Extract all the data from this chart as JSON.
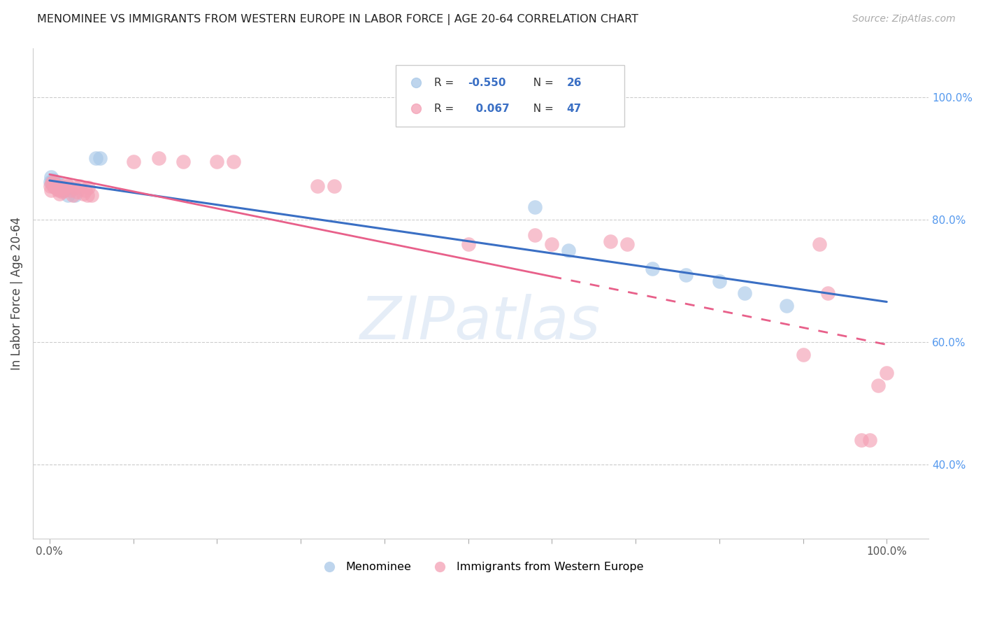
{
  "title": "MENOMINEE VS IMMIGRANTS FROM WESTERN EUROPE IN LABOR FORCE | AGE 20-64 CORRELATION CHART",
  "source": "Source: ZipAtlas.com",
  "ylabel": "In Labor Force | Age 20-64",
  "legend_label1": "Menominee",
  "legend_label2": "Immigrants from Western Europe",
  "R1": -0.55,
  "N1": 26,
  "R2": 0.067,
  "N2": 47,
  "color_blue": "#a8c8e8",
  "color_pink": "#f4a0b5",
  "line_color_blue": "#3a6fc4",
  "line_color_pink": "#e8608a",
  "menominee_x": [
    0.001,
    0.002,
    0.003,
    0.004,
    0.005,
    0.006,
    0.007,
    0.008,
    0.009,
    0.01,
    0.011,
    0.012,
    0.014,
    0.016,
    0.018,
    0.022,
    0.03,
    0.055,
    0.06,
    0.58,
    0.62,
    0.72,
    0.76,
    0.8,
    0.83,
    0.88
  ],
  "menominee_y": [
    0.862,
    0.87,
    0.86,
    0.865,
    0.855,
    0.86,
    0.858,
    0.862,
    0.856,
    0.85,
    0.858,
    0.852,
    0.85,
    0.848,
    0.848,
    0.84,
    0.84,
    0.9,
    0.9,
    0.82,
    0.75,
    0.72,
    0.71,
    0.7,
    0.68,
    0.66
  ],
  "western_x": [
    0.001,
    0.002,
    0.003,
    0.004,
    0.005,
    0.006,
    0.007,
    0.008,
    0.009,
    0.01,
    0.011,
    0.012,
    0.013,
    0.015,
    0.016,
    0.018,
    0.02,
    0.022,
    0.025,
    0.028,
    0.03,
    0.033,
    0.036,
    0.04,
    0.043,
    0.046,
    0.05,
    0.1,
    0.13,
    0.16,
    0.2,
    0.22,
    0.32,
    0.34,
    0.5,
    0.58,
    0.6,
    0.67,
    0.69,
    0.9,
    0.92,
    0.93,
    0.97,
    0.98,
    0.99,
    1.0,
    0.045
  ],
  "western_y": [
    0.855,
    0.848,
    0.86,
    0.855,
    0.862,
    0.858,
    0.852,
    0.856,
    0.85,
    0.855,
    0.848,
    0.842,
    0.85,
    0.845,
    0.848,
    0.852,
    0.858,
    0.855,
    0.848,
    0.84,
    0.852,
    0.845,
    0.855,
    0.842,
    0.848,
    0.852,
    0.84,
    0.895,
    0.9,
    0.895,
    0.895,
    0.895,
    0.855,
    0.855,
    0.76,
    0.775,
    0.76,
    0.765,
    0.76,
    0.58,
    0.76,
    0.68,
    0.44,
    0.44,
    0.53,
    0.55,
    0.84
  ],
  "yticks_right": [
    1.0,
    0.8,
    0.6,
    0.4
  ],
  "ytick_labels_right": [
    "100.0%",
    "80.0%",
    "60.0%",
    "40.0%"
  ],
  "xlim": [
    -0.02,
    1.05
  ],
  "ylim": [
    0.28,
    1.08
  ]
}
